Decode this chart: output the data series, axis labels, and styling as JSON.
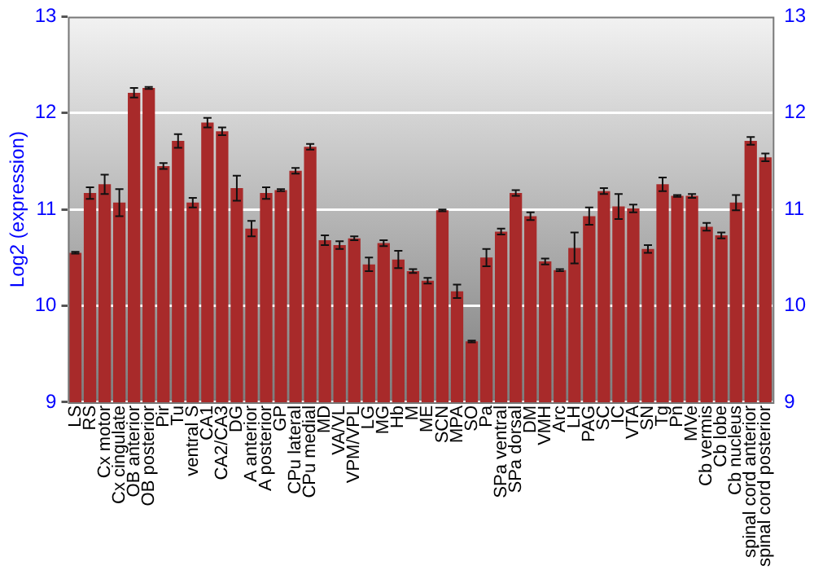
{
  "chart_data": {
    "type": "bar",
    "ylabel": "Log2 (expression)",
    "categories": [
      "LS",
      "RS",
      "Cx motor",
      "Cx cingulate",
      "OB anterior",
      "OB posterior",
      "Pir",
      "Tu",
      "ventral S",
      "CA1",
      "CA2/CA3",
      "DG",
      "A anterior",
      "A posterior",
      "GP",
      "CPu lateral",
      "CPu medial",
      "MD",
      "VA/VL",
      "VPM/VPL",
      "LG",
      "MG",
      "Hb",
      "M",
      "ME",
      "SCN",
      "MPA",
      "SO",
      "Pa",
      "SPa ventral",
      "SPa dorsal",
      "DM",
      "VMH",
      "Arc",
      "LH",
      "PAG",
      "SC",
      "IC",
      "VTA",
      "SN",
      "Tg",
      "Pn",
      "MVe",
      "Cb vermis",
      "Cb lobe",
      "Cb nucleus",
      "spinal cord anterior",
      "spinal cord posterior"
    ],
    "series": [
      {
        "color": "#a82a2a",
        "values": [
          10.55,
          11.17,
          11.26,
          11.07,
          12.21,
          12.26,
          11.45,
          11.71,
          11.07,
          11.9,
          11.81,
          11.22,
          10.8,
          11.17,
          11.2,
          11.4,
          11.65,
          10.68,
          10.63,
          10.7,
          10.43,
          10.65,
          10.48,
          10.36,
          10.26,
          10.99,
          10.15,
          9.63,
          10.5,
          10.77,
          11.17,
          10.93,
          10.46,
          10.37,
          10.6,
          10.93,
          11.19,
          11.03,
          11.01,
          10.59,
          11.26,
          11.14,
          11.14,
          10.82,
          10.73,
          11.07,
          11.71,
          11.54
        ],
        "errors": [
          0.01,
          0.06,
          0.1,
          0.14,
          0.05,
          0.01,
          0.03,
          0.07,
          0.05,
          0.05,
          0.04,
          0.13,
          0.08,
          0.06,
          0.01,
          0.03,
          0.03,
          0.05,
          0.04,
          0.02,
          0.07,
          0.03,
          0.09,
          0.02,
          0.03,
          0.01,
          0.07,
          0.01,
          0.09,
          0.03,
          0.03,
          0.04,
          0.03,
          0.01,
          0.16,
          0.09,
          0.03,
          0.13,
          0.04,
          0.04,
          0.07,
          0.01,
          0.02,
          0.04,
          0.03,
          0.08,
          0.04,
          0.04
        ]
      }
    ],
    "ylim": [
      9,
      13
    ],
    "yticks": [
      9,
      10,
      11,
      12,
      13
    ],
    "y2lim": [
      9,
      13
    ],
    "y2ticks": [
      9,
      10,
      11,
      12,
      13
    ],
    "grid": "y",
    "legend": false
  }
}
